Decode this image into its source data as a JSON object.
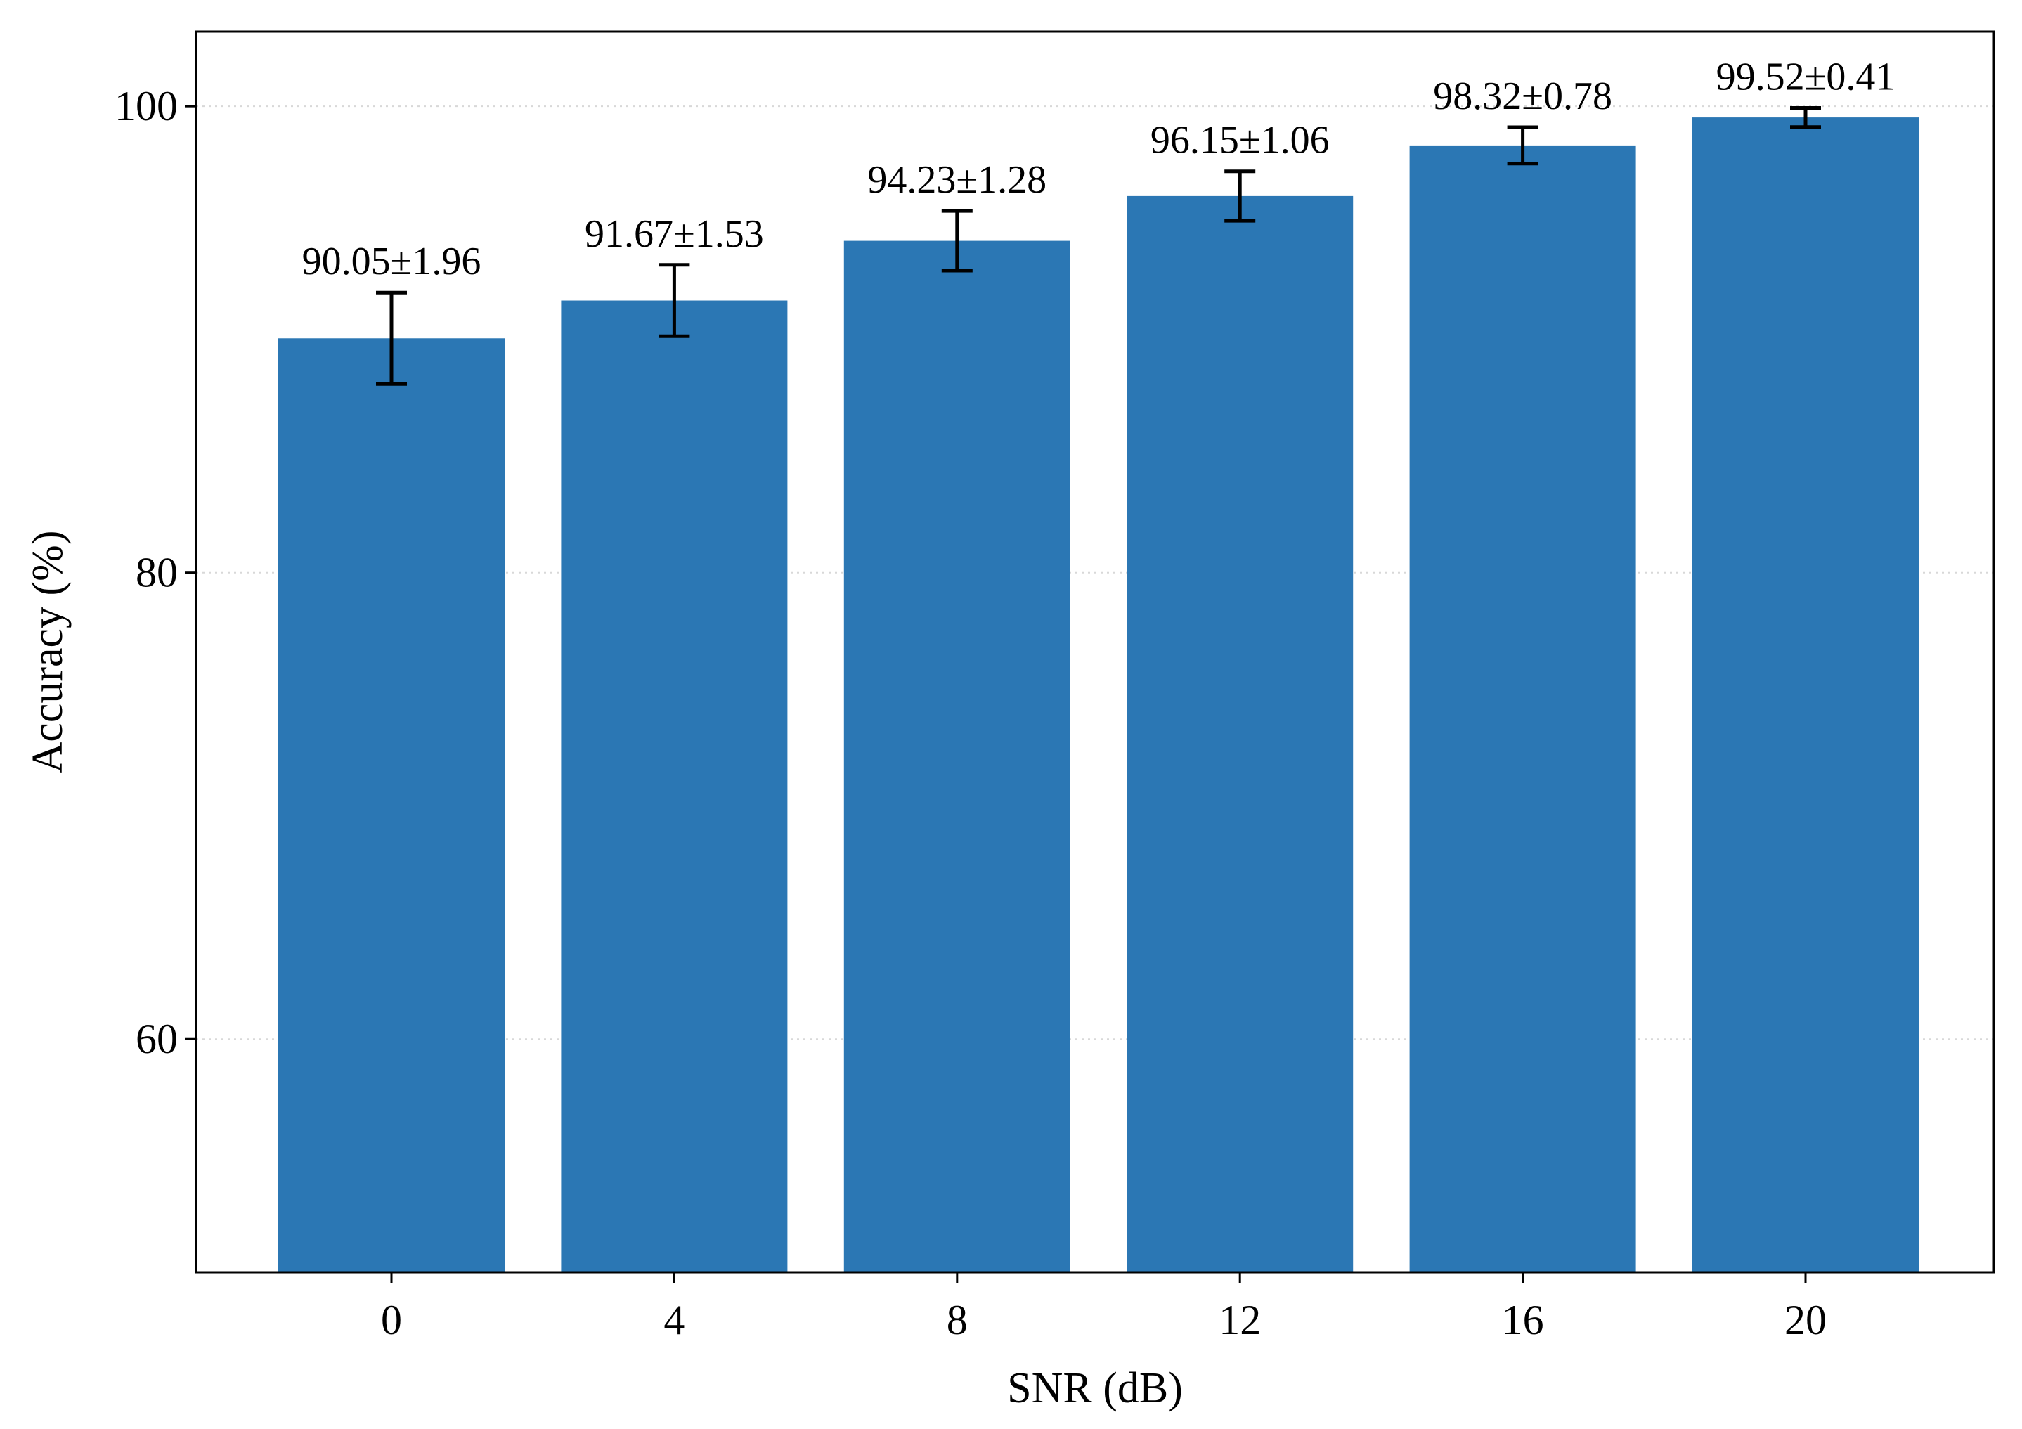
{
  "chart_data": {
    "type": "bar",
    "xlabel": "SNR (dB)",
    "ylabel": "Accuracy (%)",
    "categories": [
      "0",
      "4",
      "8",
      "12",
      "16",
      "20"
    ],
    "values": [
      90.05,
      91.67,
      94.23,
      96.15,
      98.32,
      99.52
    ],
    "errors": [
      1.96,
      1.53,
      1.28,
      1.06,
      0.78,
      0.41
    ],
    "data_labels": [
      "90.05±1.96",
      "91.67±1.53",
      "94.23±1.28",
      "96.15±1.06",
      "98.32±0.78",
      "99.52±0.41"
    ],
    "yticks": [
      "60",
      "80",
      "100"
    ],
    "ytick_values": [
      60,
      80,
      100
    ],
    "ylim": [
      50,
      103.2
    ],
    "grid": "horizontal dotted",
    "legend": "none",
    "colors": {
      "bar": "#2b77b4",
      "error_bar": "#000000",
      "grid": "#d8d8d8",
      "axes": "#000000"
    }
  }
}
